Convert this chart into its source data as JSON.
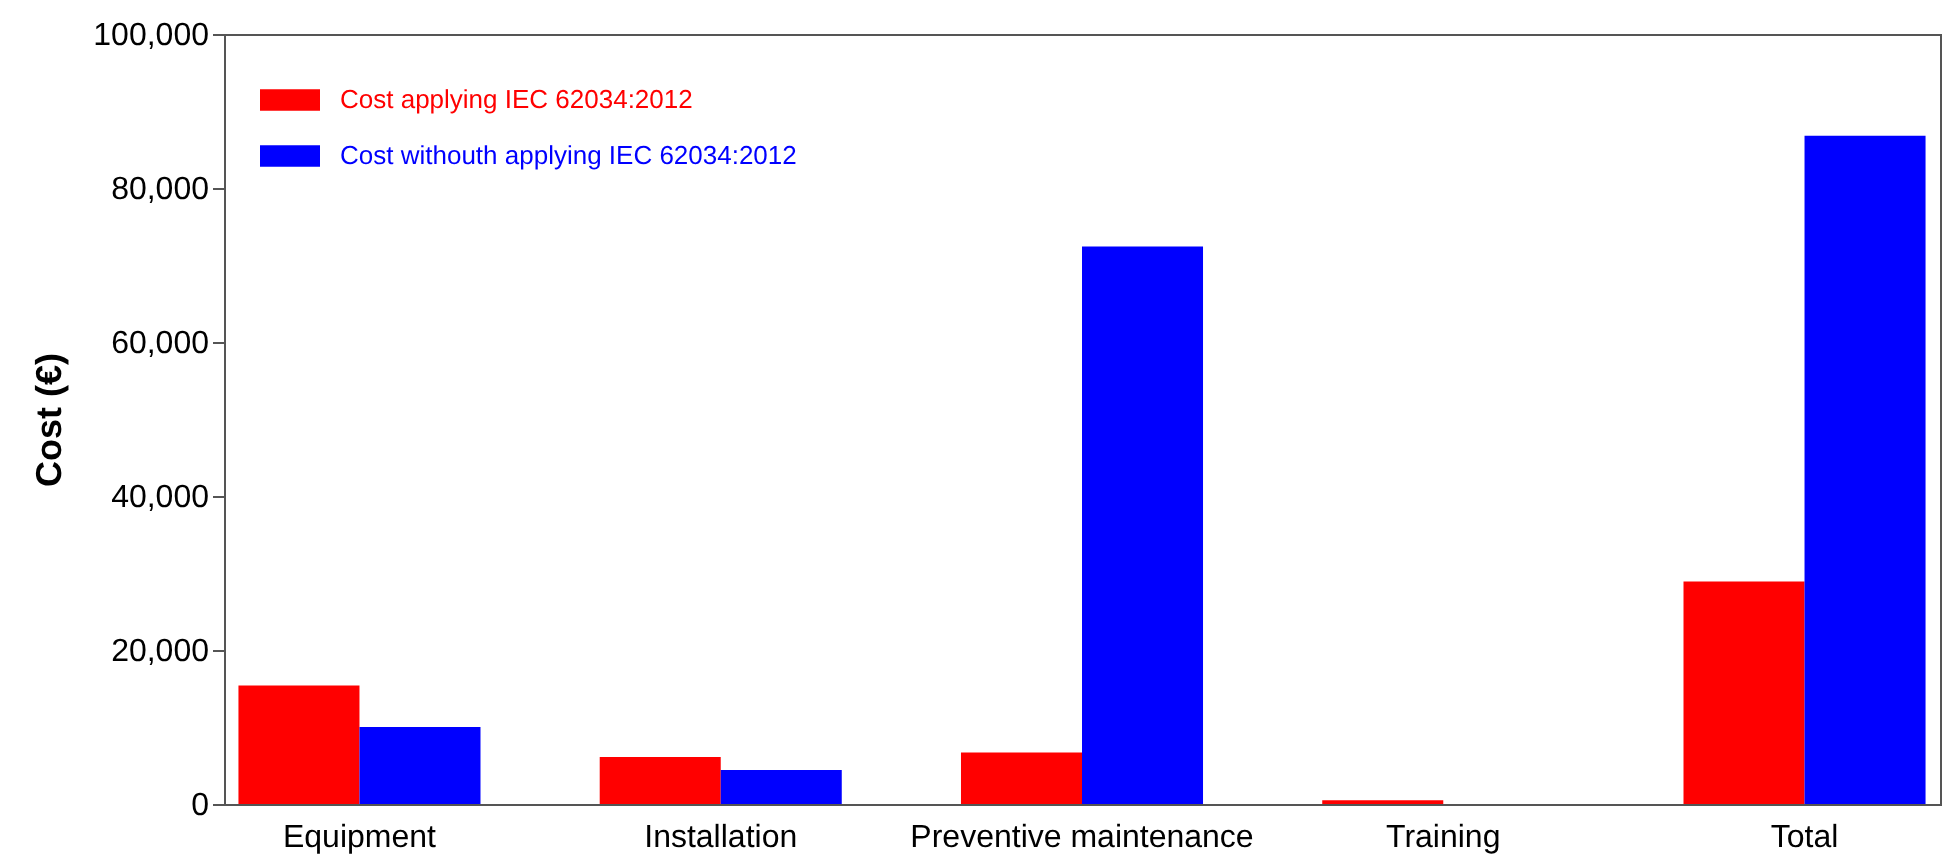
{
  "chart_data": {
    "type": "bar",
    "ylabel": "Cost (€)",
    "categories": [
      "Equipment",
      "Installation",
      "Preventive maintenance",
      "Training",
      "Total"
    ],
    "series": [
      {
        "name": "Cost applying IEC 62034:2012",
        "color": "#ff0000",
        "values": [
          15400,
          6100,
          6700,
          500,
          28900
        ]
      },
      {
        "name": "Cost withouth applying IEC 62034:2012",
        "color": "#0000ff",
        "values": [
          10000,
          4400,
          72400,
          0,
          86800
        ]
      }
    ],
    "ylim": [
      0,
      100000
    ],
    "yticks": [
      0,
      {
        "value": 20000,
        "label": "20,000"
      },
      {
        "value": 40000,
        "label": "40,000"
      },
      {
        "value": 60000,
        "label": "60,000"
      },
      {
        "value": 80000,
        "label": "80,000"
      },
      {
        "value": 100000,
        "label": "100,000"
      }
    ],
    "grid": false,
    "legend": "top left"
  }
}
